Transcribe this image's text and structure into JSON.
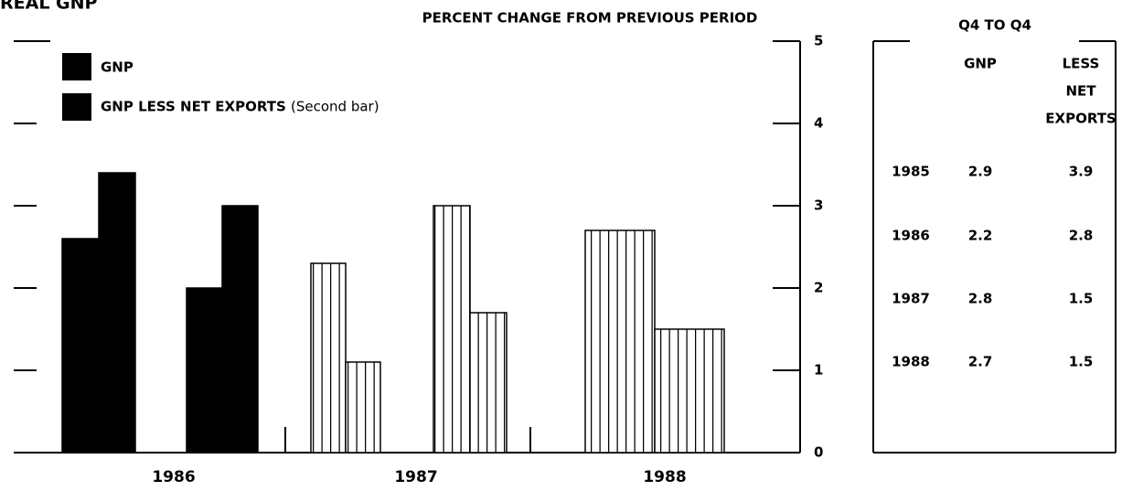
{
  "chart_data": {
    "type": "bar",
    "title": "REAL GNP",
    "subtitle": "PERCENT CHANGE FROM PREVIOUS PERIOD",
    "categories": [
      null,
      null,
      null,
      null,
      null
    ],
    "year_labels": [
      "1986",
      "1987",
      "1988"
    ],
    "series": [
      {
        "name": "GNP",
        "color": "#000000",
        "fills": [
          "solid",
          "solid",
          "hatched",
          "hatched",
          "hatched"
        ],
        "values": [
          2.6,
          2.0,
          2.3,
          3.0,
          2.7
        ]
      },
      {
        "name": "GNP LESS NET EXPORTS",
        "note": "(Second bar)",
        "color": "#000000",
        "fills": [
          "solid",
          "solid",
          "hatched",
          "hatched",
          "hatched"
        ],
        "values": [
          3.4,
          3.0,
          1.1,
          1.7,
          1.5
        ]
      }
    ],
    "ylim": [
      0,
      5
    ],
    "yticks": [
      0,
      1,
      2,
      3,
      4,
      5
    ]
  },
  "table": {
    "title": "Q4 TO Q4",
    "columns": [
      "GNP",
      "LESS",
      "NET",
      "EXPORTS"
    ],
    "rows": [
      [
        "1985",
        "2.9",
        "3.9"
      ],
      [
        "1986",
        "2.2",
        "2.8"
      ],
      [
        "1987",
        "2.8",
        "1.5"
      ],
      [
        "1988",
        "2.7",
        "1.5"
      ]
    ]
  }
}
